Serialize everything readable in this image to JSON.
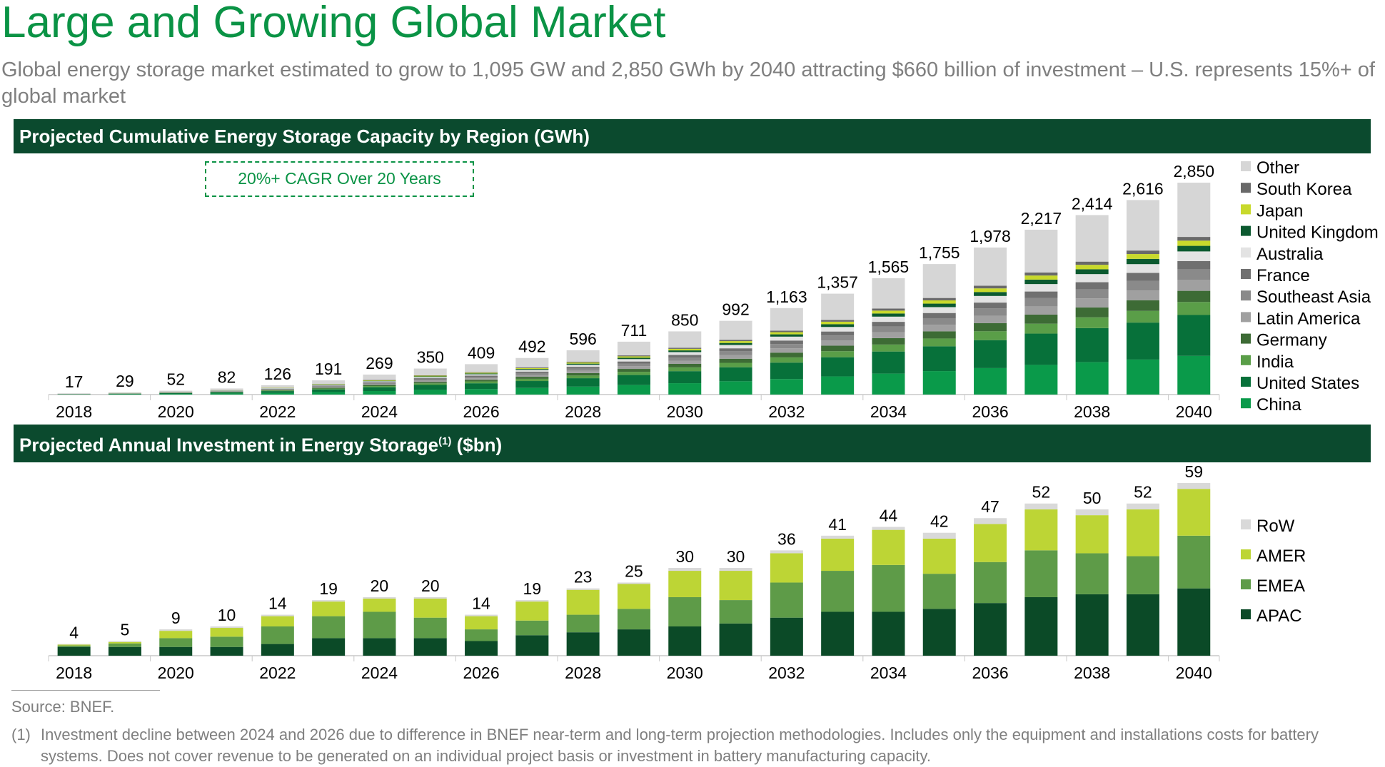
{
  "title": "Large and Growing Global Market",
  "subtitle": "Global energy storage market estimated to grow to 1,095 GW and 2,850 GWh by 2040 attracting $660 billion of investment – U.S. represents 15%+ of global market",
  "callout": "20%+ CAGR Over 20 Years",
  "source": "Source:  BNEF.",
  "footnote": {
    "marker": "(1)",
    "text": "Investment decline between 2024 and 2026 due to difference in BNEF near-term and long-term projection methodologies. Includes only the equipment and installations costs for battery systems. Does not cover revenue to be generated on an individual project basis or investment in battery manufacturing capacity."
  },
  "chart_data": [
    {
      "type": "bar",
      "stacked": true,
      "title": "Projected Cumulative Energy Storage Capacity by Region (GWh)",
      "legend": "right",
      "grid": false,
      "categories": [
        "2018",
        "2019",
        "2020",
        "2021",
        "2022",
        "2023",
        "2024",
        "2025",
        "2026",
        "2027",
        "2028",
        "2029",
        "2030",
        "2031",
        "2032",
        "2033",
        "2034",
        "2035",
        "2036",
        "2037",
        "2038",
        "2039",
        "2040"
      ],
      "tick_labels": [
        "2018",
        "2020",
        "2022",
        "2024",
        "2026",
        "2028",
        "2030",
        "2032",
        "2034",
        "2036",
        "2038",
        "2040"
      ],
      "totals": [
        17,
        29,
        52,
        82,
        126,
        191,
        269,
        350,
        409,
        492,
        596,
        711,
        850,
        992,
        1163,
        1357,
        1565,
        1755,
        1978,
        2217,
        2414,
        2616,
        2850
      ],
      "total_labels": [
        "17",
        "29",
        "52",
        "82",
        "126",
        "191",
        "269",
        "350",
        "409",
        "492",
        "596",
        "711",
        "850",
        "992",
        "1,163",
        "1,357",
        "1,565",
        "1,755",
        "1,978",
        "2,217",
        "2,414",
        "2,616",
        "2,850"
      ],
      "ylim": [
        0,
        2850
      ],
      "series": [
        {
          "name": "China",
          "color": "#0a9a4a",
          "values": [
            3,
            5,
            9,
            15,
            23,
            34,
            48,
            63,
            74,
            89,
            107,
            128,
            153,
            179,
            209,
            244,
            282,
            316,
            356,
            399,
            435,
            471,
            520
          ]
        },
        {
          "name": "United States",
          "color": "#07713a",
          "values": [
            3,
            6,
            10,
            16,
            24,
            36,
            51,
            67,
            78,
            93,
            113,
            135,
            162,
            188,
            221,
            258,
            297,
            333,
            376,
            421,
            459,
            497,
            550
          ]
        },
        {
          "name": "India",
          "color": "#5a9e48",
          "values": [
            1,
            2,
            3,
            5,
            8,
            11,
            16,
            21,
            25,
            30,
            36,
            43,
            51,
            60,
            70,
            81,
            94,
            105,
            119,
            133,
            145,
            157,
            175
          ]
        },
        {
          "name": "Germany",
          "color": "#3d6b35",
          "values": [
            1,
            2,
            3,
            4,
            7,
            11,
            15,
            19,
            22,
            27,
            33,
            39,
            47,
            55,
            64,
            75,
            86,
            97,
            109,
            122,
            133,
            144,
            150
          ]
        },
        {
          "name": "Latin America",
          "color": "#a0a0a0",
          "values": [
            1,
            1,
            3,
            4,
            6,
            10,
            13,
            18,
            20,
            25,
            30,
            36,
            43,
            50,
            58,
            68,
            78,
            88,
            99,
            111,
            121,
            131,
            150
          ]
        },
        {
          "name": "Southeast Asia",
          "color": "#8a8a8a",
          "values": [
            1,
            1,
            3,
            4,
            6,
            10,
            13,
            18,
            20,
            25,
            30,
            36,
            43,
            50,
            58,
            68,
            78,
            88,
            99,
            111,
            121,
            131,
            140
          ]
        },
        {
          "name": "France",
          "color": "#707070",
          "values": [
            1,
            1,
            2,
            3,
            5,
            8,
            11,
            14,
            16,
            20,
            24,
            28,
            34,
            40,
            47,
            54,
            63,
            70,
            79,
            89,
            97,
            105,
            110
          ]
        },
        {
          "name": "Australia",
          "color": "#e3e3e3",
          "values": [
            1,
            1,
            2,
            4,
            6,
            9,
            12,
            16,
            18,
            22,
            27,
            32,
            38,
            45,
            52,
            61,
            70,
            79,
            89,
            100,
            109,
            118,
            130
          ]
        },
        {
          "name": "United Kingdom",
          "color": "#0c5a30",
          "values": [
            0,
            1,
            1,
            2,
            3,
            5,
            7,
            9,
            11,
            13,
            16,
            19,
            23,
            27,
            31,
            37,
            42,
            47,
            53,
            60,
            65,
            71,
            75
          ]
        },
        {
          "name": "Japan",
          "color": "#c8d92c",
          "values": [
            0,
            1,
            1,
            2,
            3,
            5,
            7,
            9,
            10,
            12,
            15,
            18,
            21,
            25,
            29,
            34,
            39,
            44,
            49,
            55,
            60,
            65,
            70
          ]
        },
        {
          "name": "South Korea",
          "color": "#696969",
          "values": [
            0,
            1,
            1,
            1,
            2,
            3,
            5,
            6,
            7,
            9,
            11,
            13,
            15,
            18,
            21,
            24,
            28,
            32,
            36,
            40,
            43,
            47,
            50
          ]
        },
        {
          "name": "Other",
          "color": "#d6d6d6",
          "values": [
            5,
            7,
            14,
            22,
            33,
            49,
            71,
            90,
            108,
            127,
            154,
            184,
            220,
            255,
            303,
            353,
            408,
            456,
            514,
            576,
            626,
            679,
            730
          ]
        }
      ]
    },
    {
      "type": "bar",
      "stacked": true,
      "title": "Projected Annual Investment in Energy Storage",
      "title_sup": "(1)",
      "title_suffix": "($bn)",
      "legend": "right",
      "grid": false,
      "categories": [
        "2018",
        "2019",
        "2020",
        "2021",
        "2022",
        "2023",
        "2024",
        "2025",
        "2026",
        "2027",
        "2028",
        "2029",
        "2030",
        "2031",
        "2032",
        "2033",
        "2034",
        "2035",
        "2036",
        "2037",
        "2038",
        "2039",
        "2040"
      ],
      "tick_labels": [
        "2018",
        "2020",
        "2022",
        "2024",
        "2026",
        "2028",
        "2030",
        "2032",
        "2034",
        "2036",
        "2038",
        "2040"
      ],
      "totals": [
        4,
        5,
        9,
        10,
        14,
        19,
        20,
        20,
        14,
        19,
        23,
        25,
        30,
        30,
        36,
        41,
        44,
        42,
        47,
        52,
        50,
        52,
        59
      ],
      "total_labels": [
        "4",
        "5",
        "9",
        "10",
        "14",
        "19",
        "20",
        "20",
        "14",
        "19",
        "23",
        "25",
        "30",
        "30",
        "36",
        "41",
        "44",
        "42",
        "47",
        "52",
        "50",
        "52",
        "59"
      ],
      "ylim": [
        0,
        59
      ],
      "series": [
        {
          "name": "APAC",
          "color": "#0b4a27",
          "values": [
            3,
            3,
            3,
            3,
            4,
            6,
            6,
            6,
            5,
            7,
            8,
            9,
            10,
            11,
            13,
            15,
            15,
            16,
            18,
            20,
            21,
            21,
            23
          ]
        },
        {
          "name": "EMEA",
          "color": "#5e9b48",
          "values": [
            0.5,
            1.2,
            3,
            3.5,
            6,
            7.5,
            9,
            7,
            4,
            5,
            6,
            7,
            10,
            8,
            12,
            14,
            16,
            12,
            14,
            16,
            14,
            13,
            18
          ]
        },
        {
          "name": "AMER",
          "color": "#bdd535",
          "values": [
            0.3,
            0.5,
            2.5,
            3,
            3.5,
            5,
            4.5,
            6.5,
            4.5,
            6.5,
            8.5,
            8.5,
            9,
            10,
            10,
            11,
            12,
            12,
            13,
            14,
            13,
            16,
            16
          ]
        },
        {
          "name": "RoW",
          "color": "#d9d9d9",
          "values": [
            0.2,
            0.3,
            0.5,
            0.5,
            0.5,
            0.5,
            0.5,
            0.5,
            0.5,
            0.5,
            0.5,
            0.5,
            1,
            1,
            1,
            1,
            1,
            2,
            2,
            2,
            2,
            2,
            2
          ]
        }
      ]
    }
  ]
}
